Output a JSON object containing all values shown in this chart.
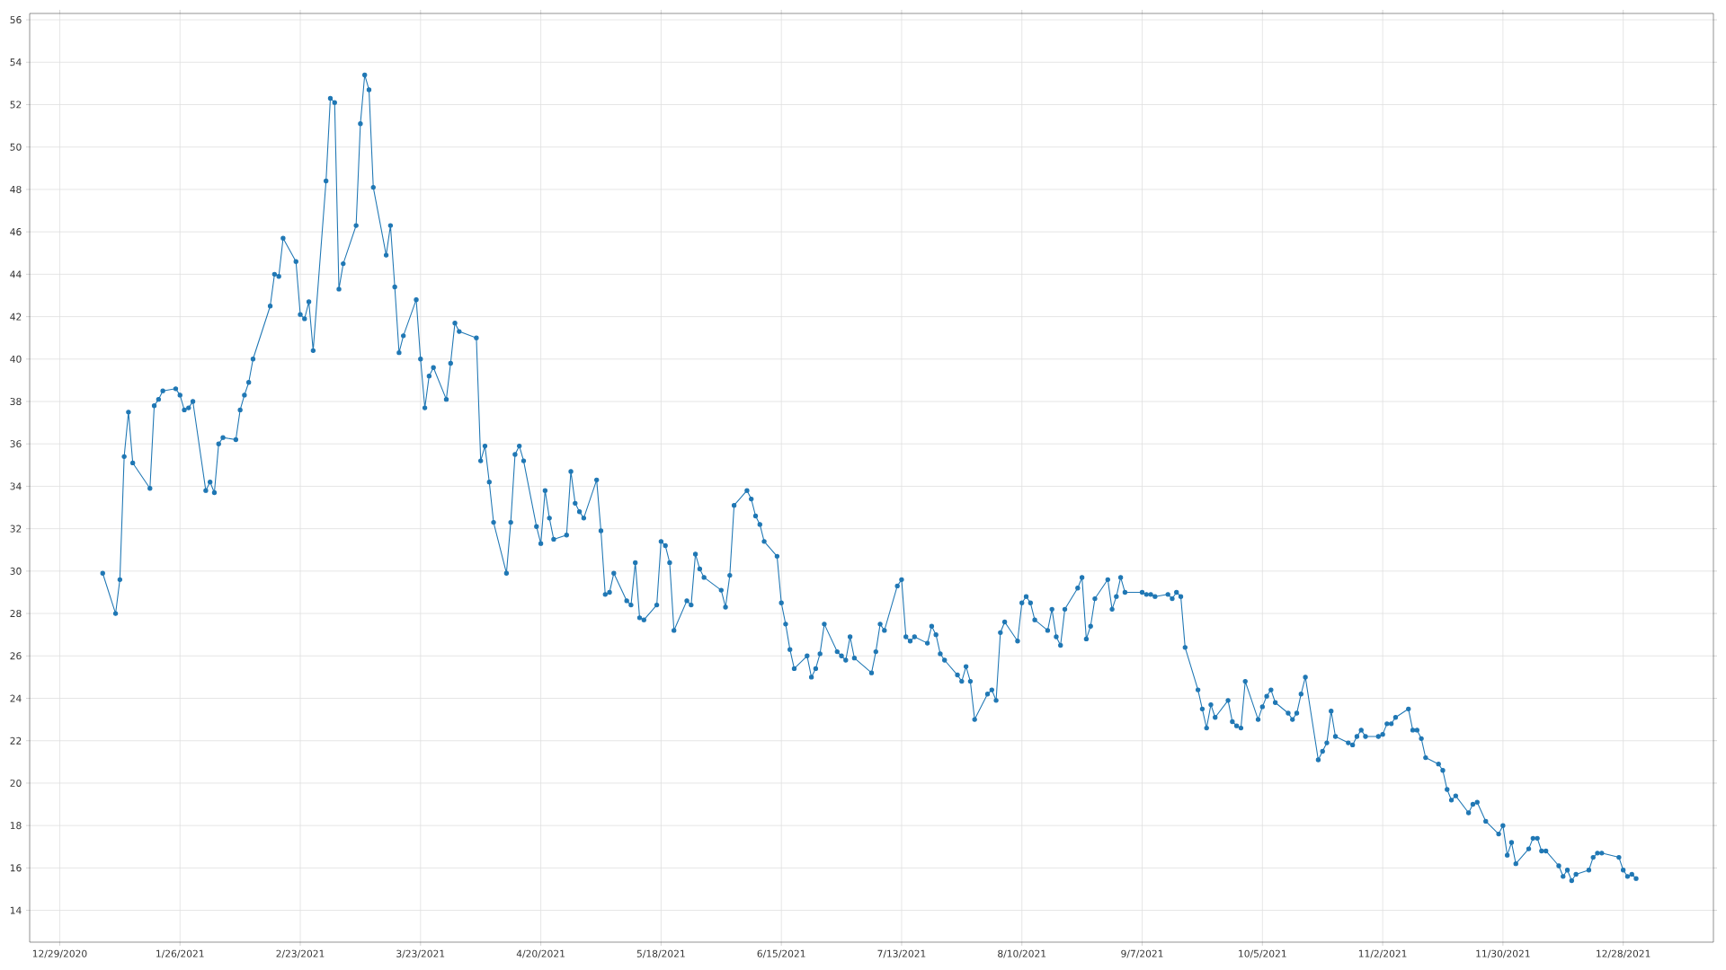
{
  "chart_data": {
    "type": "line",
    "marker": "circle",
    "line_style": "solid",
    "grid": true,
    "xlim": [
      "2020-12-22",
      "2022-01-18"
    ],
    "ylim": [
      12.5,
      56.3
    ],
    "xticks": [
      {
        "value": "2020-12-29",
        "label": "12/29/2020"
      },
      {
        "value": "2021-01-26",
        "label": "1/26/2021"
      },
      {
        "value": "2021-02-23",
        "label": "2/23/2021"
      },
      {
        "value": "2021-03-23",
        "label": "3/23/2021"
      },
      {
        "value": "2021-04-20",
        "label": "4/20/2021"
      },
      {
        "value": "2021-05-18",
        "label": "5/18/2021"
      },
      {
        "value": "2021-06-15",
        "label": "6/15/2021"
      },
      {
        "value": "2021-07-13",
        "label": "7/13/2021"
      },
      {
        "value": "2021-08-10",
        "label": "8/10/2021"
      },
      {
        "value": "2021-09-07",
        "label": "9/7/2021"
      },
      {
        "value": "2021-10-05",
        "label": "10/5/2021"
      },
      {
        "value": "2021-11-02",
        "label": "11/2/2021"
      },
      {
        "value": "2021-11-30",
        "label": "11/30/2021"
      },
      {
        "value": "2021-12-28",
        "label": "12/28/2021"
      }
    ],
    "yticks": [
      14,
      16,
      18,
      20,
      22,
      24,
      26,
      28,
      30,
      32,
      34,
      36,
      38,
      40,
      42,
      44,
      46,
      48,
      50,
      52,
      54,
      56
    ],
    "series": [
      {
        "color": "#1f77b4",
        "x": [
          "2021-01-08",
          "2021-01-11",
          "2021-01-12",
          "2021-01-13",
          "2021-01-14",
          "2021-01-15",
          "2021-01-19",
          "2021-01-20",
          "2021-01-21",
          "2021-01-22",
          "2021-01-25",
          "2021-01-26",
          "2021-01-27",
          "2021-01-28",
          "2021-01-29",
          "2021-02-01",
          "2021-02-02",
          "2021-02-03",
          "2021-02-04",
          "2021-02-05",
          "2021-02-08",
          "2021-02-09",
          "2021-02-10",
          "2021-02-11",
          "2021-02-12",
          "2021-02-16",
          "2021-02-17",
          "2021-02-18",
          "2021-02-19",
          "2021-02-22",
          "2021-02-23",
          "2021-02-24",
          "2021-02-25",
          "2021-02-26",
          "2021-03-01",
          "2021-03-02",
          "2021-03-03",
          "2021-03-04",
          "2021-03-05",
          "2021-03-08",
          "2021-03-09",
          "2021-03-10",
          "2021-03-11",
          "2021-03-12",
          "2021-03-15",
          "2021-03-16",
          "2021-03-17",
          "2021-03-18",
          "2021-03-19",
          "2021-03-22",
          "2021-03-23",
          "2021-03-24",
          "2021-03-25",
          "2021-03-26",
          "2021-03-29",
          "2021-03-30",
          "2021-03-31",
          "2021-04-01",
          "2021-04-05",
          "2021-04-06",
          "2021-04-07",
          "2021-04-08",
          "2021-04-09",
          "2021-04-12",
          "2021-04-13",
          "2021-04-14",
          "2021-04-15",
          "2021-04-16",
          "2021-04-19",
          "2021-04-20",
          "2021-04-21",
          "2021-04-22",
          "2021-04-23",
          "2021-04-26",
          "2021-04-27",
          "2021-04-28",
          "2021-04-29",
          "2021-04-30",
          "2021-05-03",
          "2021-05-04",
          "2021-05-05",
          "2021-05-06",
          "2021-05-07",
          "2021-05-10",
          "2021-05-11",
          "2021-05-12",
          "2021-05-13",
          "2021-05-14",
          "2021-05-17",
          "2021-05-18",
          "2021-05-19",
          "2021-05-20",
          "2021-05-21",
          "2021-05-24",
          "2021-05-25",
          "2021-05-26",
          "2021-05-27",
          "2021-05-28",
          "2021-06-01",
          "2021-06-02",
          "2021-06-03",
          "2021-06-04",
          "2021-06-07",
          "2021-06-08",
          "2021-06-09",
          "2021-06-10",
          "2021-06-11",
          "2021-06-14",
          "2021-06-15",
          "2021-06-16",
          "2021-06-17",
          "2021-06-18",
          "2021-06-21",
          "2021-06-22",
          "2021-06-23",
          "2021-06-24",
          "2021-06-25",
          "2021-06-28",
          "2021-06-29",
          "2021-06-30",
          "2021-07-01",
          "2021-07-02",
          "2021-07-06",
          "2021-07-07",
          "2021-07-08",
          "2021-07-09",
          "2021-07-12",
          "2021-07-13",
          "2021-07-14",
          "2021-07-15",
          "2021-07-16",
          "2021-07-19",
          "2021-07-20",
          "2021-07-21",
          "2021-07-22",
          "2021-07-23",
          "2021-07-26",
          "2021-07-27",
          "2021-07-28",
          "2021-07-29",
          "2021-07-30",
          "2021-08-02",
          "2021-08-03",
          "2021-08-04",
          "2021-08-05",
          "2021-08-06",
          "2021-08-09",
          "2021-08-10",
          "2021-08-11",
          "2021-08-12",
          "2021-08-13",
          "2021-08-16",
          "2021-08-17",
          "2021-08-18",
          "2021-08-19",
          "2021-08-20",
          "2021-08-23",
          "2021-08-24",
          "2021-08-25",
          "2021-08-26",
          "2021-08-27",
          "2021-08-30",
          "2021-08-31",
          "2021-09-01",
          "2021-09-02",
          "2021-09-03",
          "2021-09-07",
          "2021-09-08",
          "2021-09-09",
          "2021-09-10",
          "2021-09-13",
          "2021-09-14",
          "2021-09-15",
          "2021-09-16",
          "2021-09-17",
          "2021-09-20",
          "2021-09-21",
          "2021-09-22",
          "2021-09-23",
          "2021-09-24",
          "2021-09-27",
          "2021-09-28",
          "2021-09-29",
          "2021-09-30",
          "2021-10-01",
          "2021-10-04",
          "2021-10-05",
          "2021-10-06",
          "2021-10-07",
          "2021-10-08",
          "2021-10-11",
          "2021-10-12",
          "2021-10-13",
          "2021-10-14",
          "2021-10-15",
          "2021-10-18",
          "2021-10-19",
          "2021-10-20",
          "2021-10-21",
          "2021-10-22",
          "2021-10-25",
          "2021-10-26",
          "2021-10-27",
          "2021-10-28",
          "2021-10-29",
          "2021-11-01",
          "2021-11-02",
          "2021-11-03",
          "2021-11-04",
          "2021-11-05",
          "2021-11-08",
          "2021-11-09",
          "2021-11-10",
          "2021-11-11",
          "2021-11-12",
          "2021-11-15",
          "2021-11-16",
          "2021-11-17",
          "2021-11-18",
          "2021-11-19",
          "2021-11-22",
          "2021-11-23",
          "2021-11-24",
          "2021-11-26",
          "2021-11-29",
          "2021-11-30",
          "2021-12-01",
          "2021-12-02",
          "2021-12-03",
          "2021-12-06",
          "2021-12-07",
          "2021-12-08",
          "2021-12-09",
          "2021-12-10",
          "2021-12-13",
          "2021-12-14",
          "2021-12-15",
          "2021-12-16",
          "2021-12-17",
          "2021-12-20",
          "2021-12-21",
          "2021-12-22",
          "2021-12-23",
          "2021-12-27",
          "2021-12-28",
          "2021-12-29",
          "2021-12-30",
          "2021-12-31"
        ],
        "values": [
          29.9,
          28.0,
          29.6,
          35.4,
          37.5,
          35.1,
          33.9,
          37.8,
          38.1,
          38.5,
          38.6,
          38.3,
          37.6,
          37.7,
          38.0,
          33.8,
          34.2,
          33.7,
          36.0,
          36.3,
          36.2,
          37.6,
          38.3,
          38.9,
          40.0,
          42.5,
          44.0,
          43.9,
          45.7,
          44.6,
          42.1,
          41.9,
          42.7,
          40.4,
          48.4,
          52.3,
          52.1,
          43.3,
          44.5,
          46.3,
          51.1,
          53.4,
          52.7,
          48.1,
          44.9,
          46.3,
          43.4,
          40.3,
          41.1,
          42.8,
          40.0,
          37.7,
          39.2,
          39.6,
          38.1,
          39.8,
          41.7,
          41.3,
          41.0,
          35.2,
          35.9,
          34.2,
          32.3,
          29.9,
          32.3,
          35.5,
          35.9,
          35.2,
          32.1,
          31.3,
          33.8,
          32.5,
          31.5,
          31.7,
          34.7,
          33.2,
          32.8,
          32.5,
          34.3,
          31.9,
          28.9,
          29.0,
          29.9,
          28.6,
          28.4,
          30.4,
          27.8,
          27.7,
          28.4,
          31.4,
          31.2,
          30.4,
          27.2,
          28.6,
          28.4,
          30.8,
          30.1,
          29.7,
          29.1,
          28.3,
          29.8,
          33.1,
          33.8,
          33.4,
          32.6,
          32.2,
          31.4,
          30.7,
          28.5,
          27.5,
          26.3,
          25.4,
          26.0,
          25.0,
          25.4,
          26.1,
          27.5,
          26.2,
          26.0,
          25.8,
          26.9,
          25.9,
          25.2,
          26.2,
          27.5,
          27.2,
          29.3,
          29.6,
          26.9,
          26.7,
          26.9,
          26.6,
          27.4,
          27.0,
          26.1,
          25.8,
          25.1,
          24.8,
          25.5,
          24.8,
          23.0,
          24.2,
          24.4,
          23.9,
          27.1,
          27.6,
          26.7,
          28.5,
          28.8,
          28.5,
          27.7,
          27.2,
          28.2,
          26.9,
          26.5,
          28.2,
          29.2,
          29.7,
          26.8,
          27.4,
          28.7,
          29.6,
          28.2,
          28.8,
          29.7,
          29.0,
          29.0,
          28.9,
          28.9,
          28.8,
          28.9,
          28.7,
          29.0,
          28.8,
          26.4,
          24.4,
          23.5,
          22.6,
          23.7,
          23.1,
          23.9,
          22.9,
          22.7,
          22.6,
          24.8,
          23.0,
          23.6,
          24.1,
          24.4,
          23.8,
          23.3,
          23.0,
          23.3,
          24.2,
          25.0,
          21.1,
          21.5,
          21.9,
          23.4,
          22.2,
          21.9,
          21.8,
          22.2,
          22.5,
          22.2,
          22.2,
          22.3,
          22.8,
          22.8,
          23.1,
          23.5,
          22.5,
          22.5,
          22.1,
          21.2,
          20.9,
          20.6,
          19.7,
          19.2,
          19.4,
          18.6,
          19.0,
          19.1,
          18.2,
          17.6,
          18.0,
          16.6,
          17.2,
          16.2,
          16.9,
          17.4,
          17.4,
          16.8,
          16.8,
          16.1,
          15.6,
          15.9,
          15.4,
          15.7,
          15.9,
          16.5,
          16.7,
          16.7,
          16.5,
          15.9,
          15.6,
          15.7,
          15.5
        ]
      }
    ]
  }
}
